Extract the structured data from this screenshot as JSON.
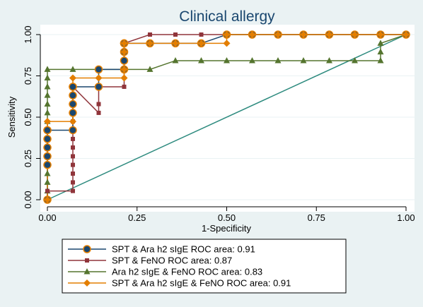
{
  "chart_data": {
    "type": "line",
    "title": "Clinical allergy",
    "xlabel": "1-Specificity",
    "ylabel": "Sensitivity",
    "xlim": [
      0,
      1
    ],
    "ylim": [
      0,
      1
    ],
    "x_ticks": [
      "0.00",
      "0.25",
      "0.50",
      "0.75",
      "1.00"
    ],
    "y_ticks": [
      "0.00",
      "0.25",
      "0.50",
      "0.75",
      "1.00"
    ],
    "grid": true,
    "legend_position": "bottom",
    "reference_line": {
      "x": [
        0,
        1
      ],
      "y": [
        0,
        1
      ],
      "color": "#2e8b7f"
    },
    "series": [
      {
        "name": "SPT & Ara h2 sIgE ROC area: 0.91",
        "color": "#1a476f",
        "marker": "circle",
        "x": [
          0,
          0,
          0,
          0,
          0,
          0,
          0,
          0.071,
          0.071,
          0.071,
          0.071,
          0.071,
          0.071,
          0.143,
          0.143,
          0.214,
          0.214,
          0.214,
          0.214,
          0.214,
          0.286,
          0.357,
          0.429,
          0.5,
          0.571,
          0.643,
          0.714,
          0.786,
          0.857,
          0.929,
          1
        ],
        "y": [
          0,
          0.211,
          0.263,
          0.316,
          0.368,
          0.421,
          0.421,
          0.421,
          0.526,
          0.579,
          0.632,
          0.684,
          0.684,
          0.684,
          0.789,
          0.789,
          0.842,
          0.895,
          0.947,
          0.947,
          0.947,
          0.947,
          0.947,
          1,
          1,
          1,
          1,
          1,
          1,
          1,
          1
        ]
      },
      {
        "name": "SPT & FeNO ROC area: 0.87",
        "color": "#90353b",
        "marker": "square",
        "x": [
          0,
          0,
          0.071,
          0.071,
          0.071,
          0.071,
          0.071,
          0.071,
          0.071,
          0.071,
          0.071,
          0.071,
          0.071,
          0.071,
          0.071,
          0.071,
          0.143,
          0.143,
          0.143,
          0.214,
          0.214,
          0.214,
          0.286,
          0.357,
          0.429,
          0.5,
          0.571,
          0.643,
          0.714,
          0.786,
          0.857,
          0.929,
          1
        ],
        "y": [
          0,
          0.053,
          0.053,
          0.105,
          0.158,
          0.211,
          0.263,
          0.316,
          0.368,
          0.421,
          0.474,
          0.526,
          0.579,
          0.632,
          0.684,
          0.684,
          0.526,
          0.579,
          0.684,
          0.684,
          0.947,
          0.947,
          1,
          1,
          1,
          1,
          1,
          1,
          1,
          1,
          1,
          1,
          1
        ]
      },
      {
        "name": "Ara h2 sIgE & FeNO ROC area: 0.83",
        "color": "#55752f",
        "marker": "triangle",
        "x": [
          0,
          0,
          0,
          0,
          0,
          0,
          0,
          0,
          0,
          0,
          0,
          0,
          0,
          0,
          0,
          0,
          0.071,
          0.143,
          0.214,
          0.286,
          0.357,
          0.429,
          0.5,
          0.571,
          0.643,
          0.714,
          0.786,
          0.857,
          0.929,
          0.929,
          0.929,
          1
        ],
        "y": [
          0,
          0.053,
          0.105,
          0.158,
          0.211,
          0.263,
          0.316,
          0.368,
          0.421,
          0.474,
          0.526,
          0.579,
          0.632,
          0.684,
          0.737,
          0.789,
          0.789,
          0.789,
          0.789,
          0.789,
          0.842,
          0.842,
          0.842,
          0.842,
          0.842,
          0.842,
          0.842,
          0.842,
          0.842,
          0.895,
          0.947,
          1
        ]
      },
      {
        "name": "SPT & Ara h2 sIgE & FeNO ROC area: 0.91",
        "color": "#e37e00",
        "marker": "diamond",
        "x": [
          0,
          0,
          0,
          0.071,
          0.071,
          0.143,
          0.214,
          0.214,
          0.214,
          0.214,
          0.286,
          0.357,
          0.429,
          0.5,
          0.5,
          0.571,
          0.643,
          0.714,
          0.786,
          0.857,
          0.929,
          1
        ],
        "y": [
          0,
          0.474,
          0.474,
          0.474,
          0.737,
          0.737,
          0.737,
          0.789,
          0.895,
          0.947,
          0.947,
          0.947,
          0.947,
          0.947,
          1,
          1,
          1,
          1,
          1,
          1,
          1,
          1
        ]
      }
    ]
  }
}
